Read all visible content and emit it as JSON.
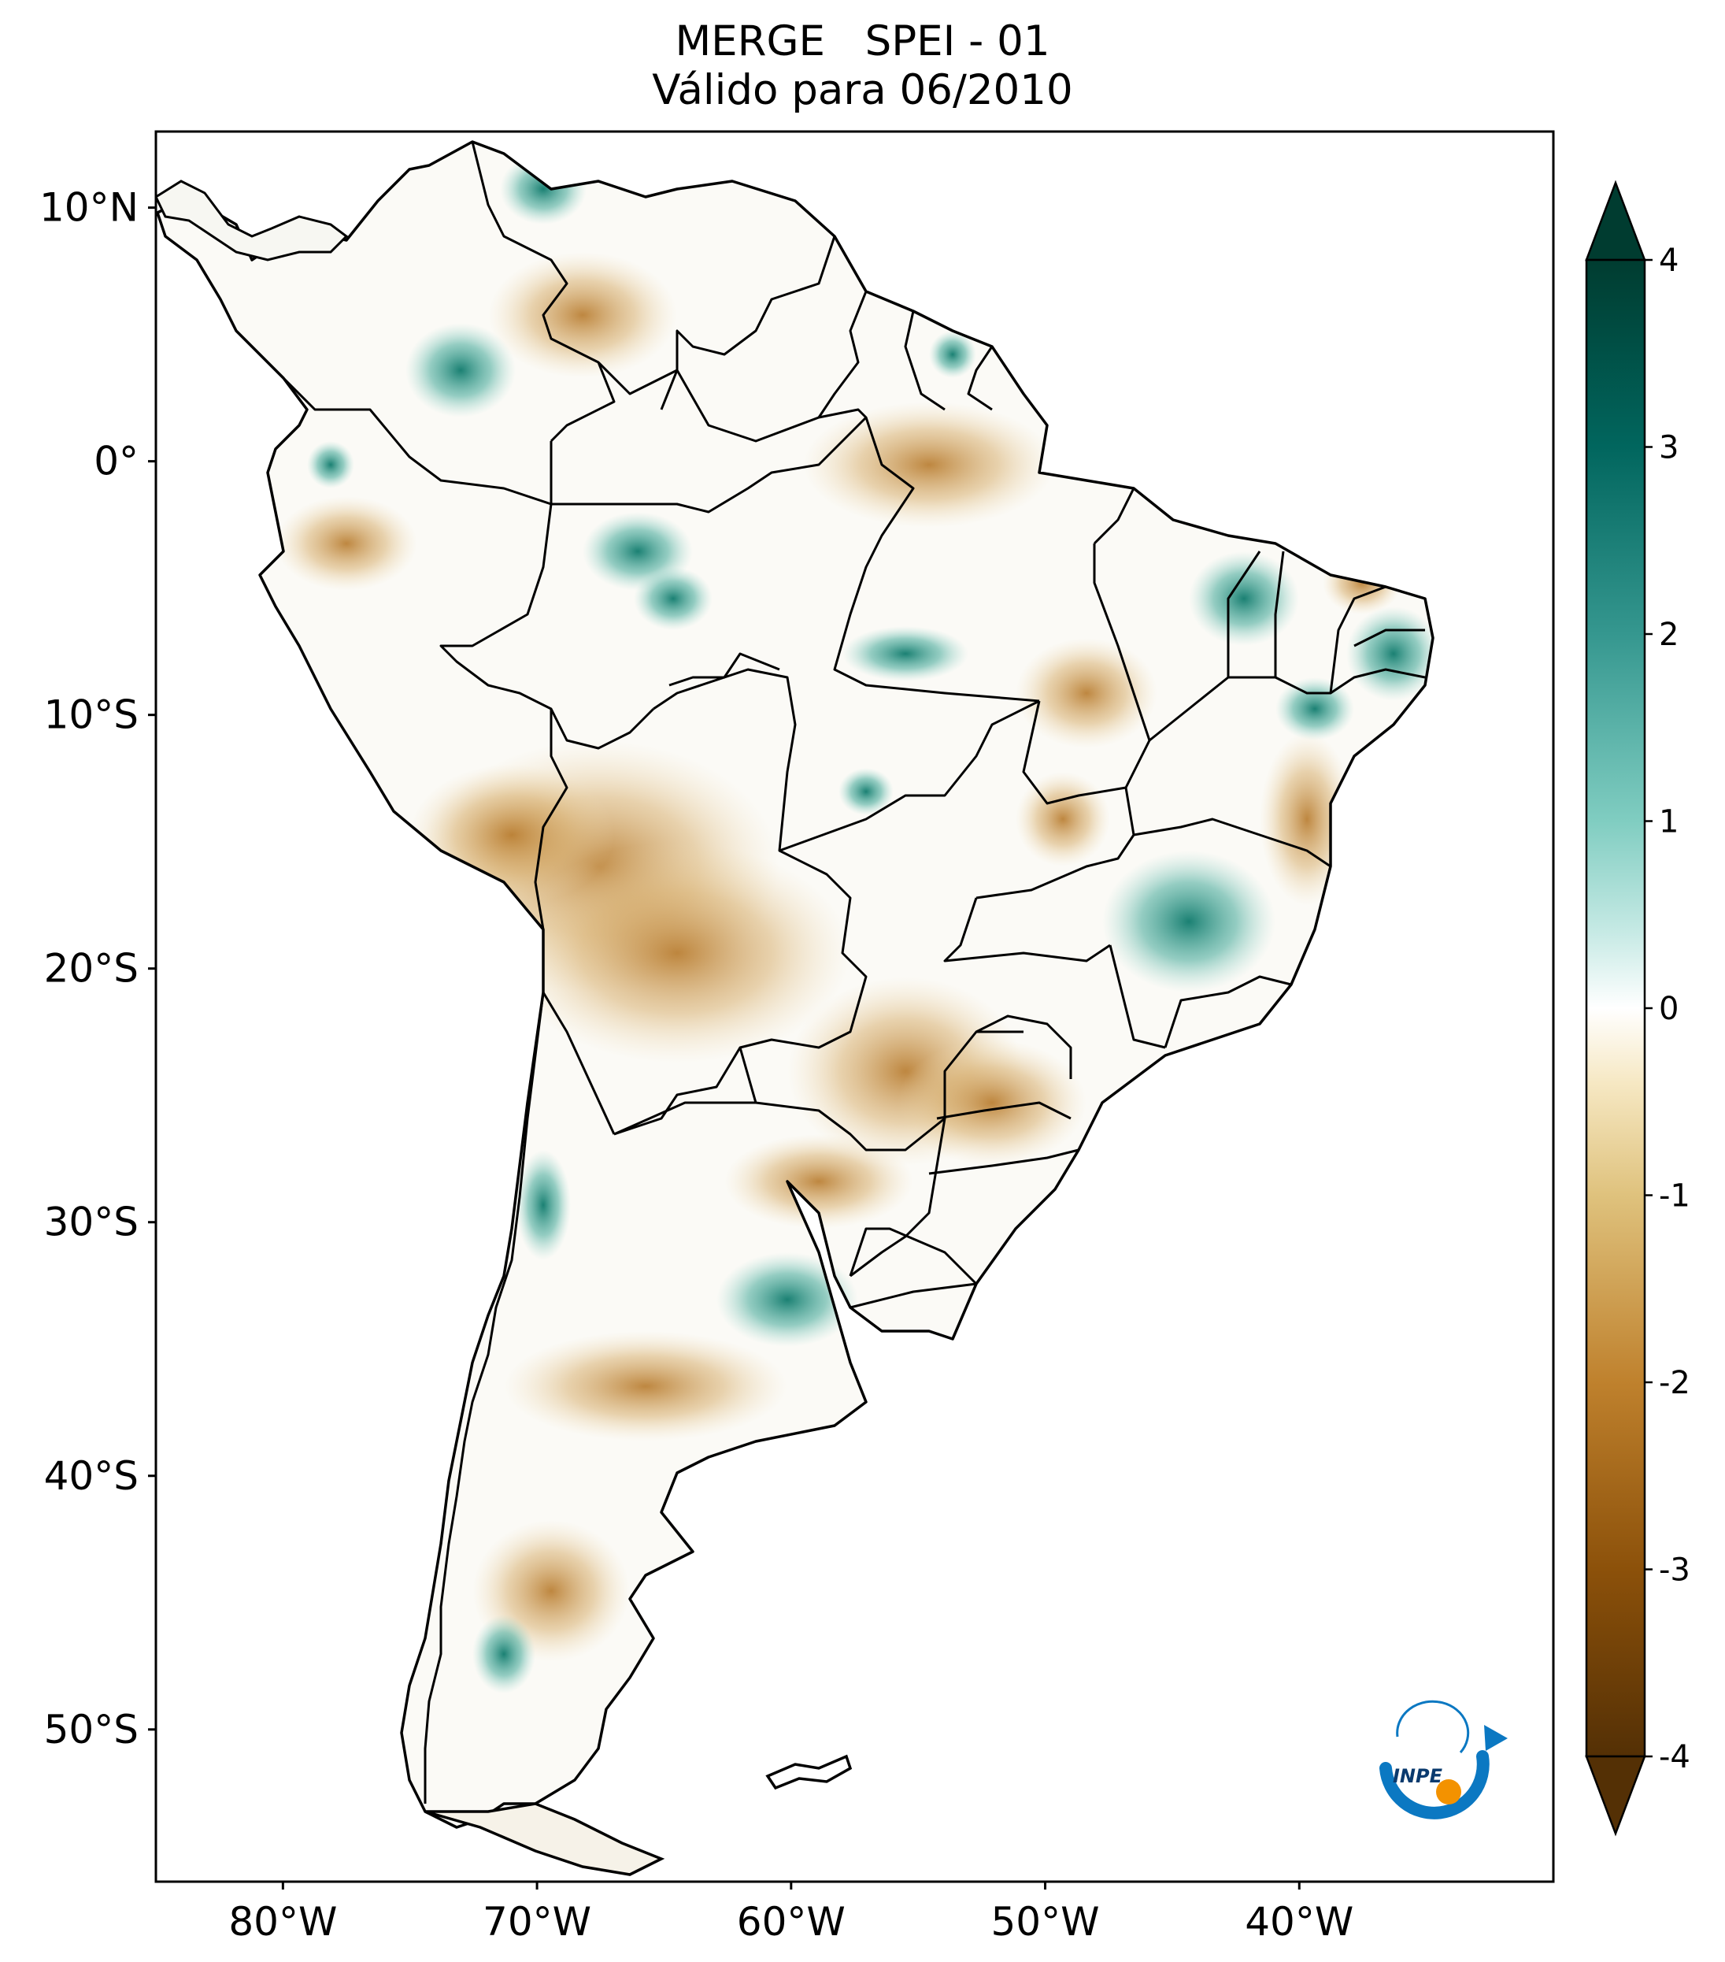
{
  "title": {
    "line1": "MERGE   SPEI - 01",
    "line2": "Válido para 06/2010"
  },
  "map": {
    "lon_range": [
      -85,
      -30
    ],
    "lat_range": [
      -56,
      13
    ],
    "lon_ticks": [
      {
        "value": -80,
        "label": "80°W"
      },
      {
        "value": -70,
        "label": "70°W"
      },
      {
        "value": -60,
        "label": "60°W"
      },
      {
        "value": -50,
        "label": "50°W"
      },
      {
        "value": -40,
        "label": "40°W"
      }
    ],
    "lat_ticks": [
      {
        "value": 10,
        "label": "10°N"
      },
      {
        "value": 0,
        "label": "0°"
      },
      {
        "value": -10,
        "label": "10°S"
      },
      {
        "value": -20,
        "label": "20°S"
      },
      {
        "value": -30,
        "label": "30°S"
      },
      {
        "value": -40,
        "label": "40°S"
      },
      {
        "value": -50,
        "label": "50°S"
      }
    ],
    "colors": {
      "land_border": "#000000",
      "wet": "#1f8f80",
      "dry": "#c48a3c"
    }
  },
  "colorbar": {
    "min": -4,
    "max": 4,
    "ticks": [
      {
        "value": 4,
        "label": "4"
      },
      {
        "value": 3,
        "label": "3"
      },
      {
        "value": 2,
        "label": "2"
      },
      {
        "value": 1,
        "label": "1"
      },
      {
        "value": 0,
        "label": "0"
      },
      {
        "value": -1,
        "label": "-1"
      },
      {
        "value": -2,
        "label": "-2"
      },
      {
        "value": -3,
        "label": "-3"
      },
      {
        "value": -4,
        "label": "-4"
      }
    ],
    "colors": [
      "#543005",
      "#8c510a",
      "#bf812d",
      "#dfc27d",
      "#f6e8c3",
      "#ffffff",
      "#c7eae5",
      "#80cdc1",
      "#35978f",
      "#01665e",
      "#003c30"
    ]
  },
  "logo": {
    "text": "INPE",
    "colors": {
      "arc": "#0b78c2",
      "dot": "#f39200"
    }
  }
}
